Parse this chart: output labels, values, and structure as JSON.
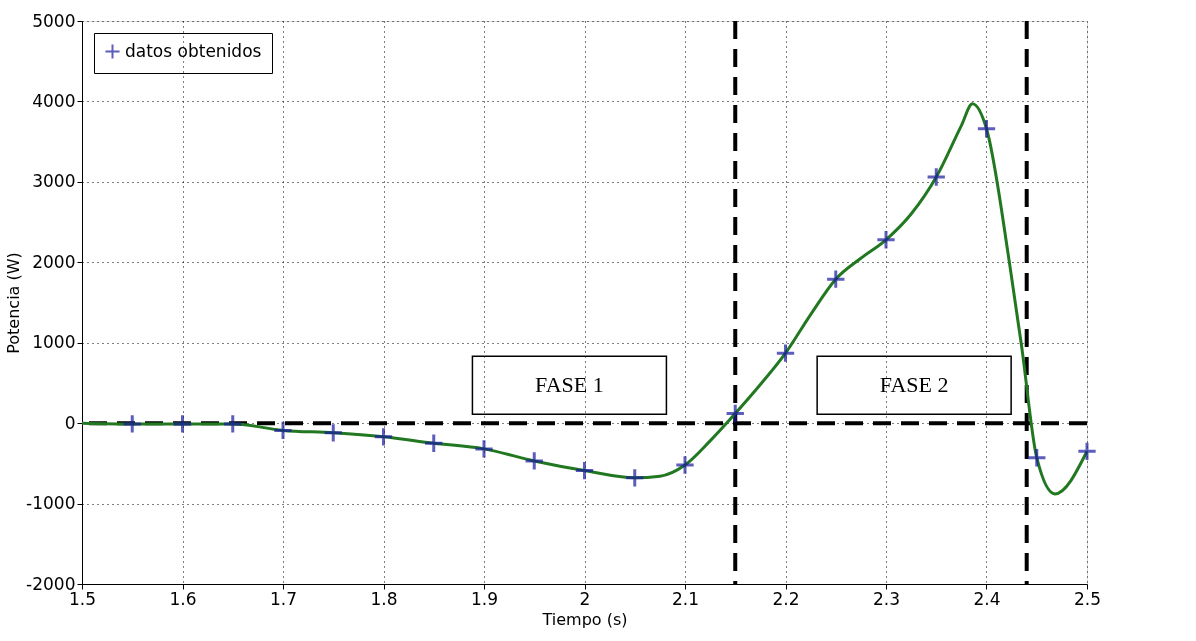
{
  "chart_data": {
    "type": "line",
    "xlabel": "Tiempo (s)",
    "ylabel": "Potencia (W)",
    "xlim": [
      1.5,
      2.5
    ],
    "xticks": [
      1.5,
      1.6,
      1.7,
      1.8,
      1.9,
      2,
      2.1,
      2.2,
      2.3,
      2.4,
      2.5
    ],
    "ylim": [
      -2000,
      5000
    ],
    "yticks": [
      -2000,
      -1000,
      0,
      1000,
      2000,
      3000,
      4000,
      5000
    ],
    "grid": true,
    "legend": "top left",
    "series": [
      {
        "type": "line",
        "color": "#217821",
        "line_style": "solid",
        "marker": "none",
        "x": [
          1.5,
          1.55,
          1.6,
          1.65,
          1.7,
          1.75,
          1.8,
          1.85,
          1.9,
          1.95,
          2,
          2.05,
          2.075,
          2.1,
          2.125,
          2.15,
          2.175,
          2.2,
          2.225,
          2.25,
          2.275,
          2.3,
          2.325,
          2.35,
          2.375,
          2.386,
          2.4,
          2.423,
          2.435,
          2.45,
          2.468,
          2.5
        ],
        "values": [
          0,
          -10,
          -10,
          -10,
          -90,
          -120,
          -170,
          -250,
          -320,
          -470,
          -590,
          -680,
          -660,
          -520,
          -220,
          120,
          480,
          870,
          1350,
          1790,
          2050,
          2280,
          2600,
          3060,
          3700,
          3970,
          3660,
          1980,
          950,
          -430,
          -880,
          -350
        ]
      },
      {
        "type": "scatter",
        "name": "datos obtenidos",
        "color": "#1a1aa0",
        "marker": "cross",
        "x": [
          1.55,
          1.6,
          1.65,
          1.7,
          1.75,
          1.8,
          1.85,
          1.9,
          1.95,
          2,
          2.05,
          2.1,
          2.15,
          2.2,
          2.25,
          2.3,
          2.35,
          2.4,
          2.45,
          2.5
        ],
        "values": [
          -10,
          -10,
          -10,
          -90,
          -120,
          -170,
          -250,
          -320,
          -470,
          -590,
          -680,
          -520,
          120,
          870,
          1790,
          2280,
          3060,
          3660,
          -430,
          -350
        ]
      }
    ],
    "ref_lines": [
      {
        "axis": "x",
        "value": 2.15,
        "color": "#000000",
        "line_style": "dashed"
      },
      {
        "axis": "x",
        "value": 2.44,
        "color": "#000000",
        "line_style": "dashed"
      },
      {
        "axis": "y",
        "value": 0,
        "color": "#000000",
        "line_style": "dashed"
      }
    ],
    "annotations": [
      "FASE 1",
      "FASE 2"
    ]
  }
}
